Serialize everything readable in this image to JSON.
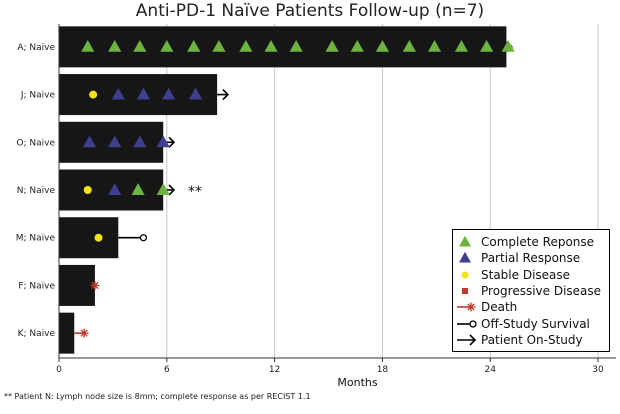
{
  "chart_data": {
    "type": "swimmer",
    "title": "Anti-PD-1 Naïve Patients Follow-up (n=7)",
    "xlabel": "Months",
    "ylabel": "",
    "xlim": [
      0,
      31
    ],
    "xticks": [
      0,
      6,
      12,
      18,
      24,
      30
    ],
    "grid": true,
    "legend_position": "bottom-right",
    "colors": {
      "bar": "#161616",
      "complete_response": "#6cb33f",
      "partial_response": "#3d3f8f",
      "stable_disease": "#f4e21a",
      "progressive_disease": "#c0392b",
      "death": "#c0392b",
      "line": "#000000",
      "grid": "#c8c8c8"
    },
    "legend": [
      {
        "key": "complete_response",
        "label": "Complete Reponse",
        "symbol": "triangle"
      },
      {
        "key": "partial_response",
        "label": "Partial Response",
        "symbol": "triangle"
      },
      {
        "key": "stable_disease",
        "label": "Stable Disease",
        "symbol": "circle"
      },
      {
        "key": "progressive_disease",
        "label": "Progressive Disease",
        "symbol": "square"
      },
      {
        "key": "death",
        "label": "Death",
        "symbol": "asterisk-line"
      },
      {
        "key": "off_study",
        "label": "Off-Study Survival",
        "symbol": "open-circle-line"
      },
      {
        "key": "on_study",
        "label": "Patient On-Study",
        "symbol": "arrow-line"
      }
    ],
    "patients": [
      {
        "label": "A; Naive",
        "bar_end": 24.9,
        "end_marker": "arrow",
        "end_x": 25.2,
        "markers": [
          {
            "x": 1.6,
            "type": "complete_response"
          },
          {
            "x": 3.1,
            "type": "complete_response"
          },
          {
            "x": 4.5,
            "type": "complete_response"
          },
          {
            "x": 6.0,
            "type": "complete_response"
          },
          {
            "x": 7.5,
            "type": "complete_response"
          },
          {
            "x": 8.9,
            "type": "complete_response"
          },
          {
            "x": 10.4,
            "type": "complete_response"
          },
          {
            "x": 11.8,
            "type": "complete_response"
          },
          {
            "x": 13.2,
            "type": "complete_response"
          },
          {
            "x": 15.2,
            "type": "complete_response"
          },
          {
            "x": 16.6,
            "type": "complete_response"
          },
          {
            "x": 18.0,
            "type": "complete_response"
          },
          {
            "x": 19.5,
            "type": "complete_response"
          },
          {
            "x": 20.9,
            "type": "complete_response"
          },
          {
            "x": 22.4,
            "type": "complete_response"
          },
          {
            "x": 23.8,
            "type": "complete_response"
          },
          {
            "x": 25.0,
            "type": "complete_response"
          }
        ]
      },
      {
        "label": "J; Naive",
        "bar_end": 8.8,
        "end_marker": "arrow",
        "end_x": 9.4,
        "markers": [
          {
            "x": 1.9,
            "type": "stable_disease"
          },
          {
            "x": 3.3,
            "type": "partial_response"
          },
          {
            "x": 4.7,
            "type": "partial_response"
          },
          {
            "x": 6.1,
            "type": "partial_response"
          },
          {
            "x": 7.6,
            "type": "partial_response"
          }
        ]
      },
      {
        "label": "O; Naive",
        "bar_end": 5.8,
        "end_marker": "arrow",
        "end_x": 6.4,
        "markers": [
          {
            "x": 1.7,
            "type": "partial_response"
          },
          {
            "x": 3.1,
            "type": "partial_response"
          },
          {
            "x": 4.5,
            "type": "partial_response"
          },
          {
            "x": 5.8,
            "type": "partial_response"
          }
        ]
      },
      {
        "label": "N; Naive",
        "bar_end": 5.8,
        "end_marker": "arrow",
        "end_x": 6.4,
        "note": "**",
        "markers": [
          {
            "x": 1.6,
            "type": "stable_disease"
          },
          {
            "x": 3.1,
            "type": "partial_response"
          },
          {
            "x": 4.4,
            "type": "complete_response"
          },
          {
            "x": 5.8,
            "type": "complete_response"
          }
        ]
      },
      {
        "label": "M; Naive",
        "bar_end": 3.3,
        "end_marker": "off_study",
        "end_x": 4.7,
        "markers": [
          {
            "x": 2.2,
            "type": "stable_disease"
          }
        ]
      },
      {
        "label": "F; Naive",
        "bar_end": 2.0,
        "end_marker": "death",
        "end_x": 2.0,
        "markers": []
      },
      {
        "label": "K; Naive",
        "bar_end": 0.85,
        "end_marker": "death",
        "end_x": 1.4,
        "markers": []
      }
    ],
    "footnote": "** Patient N: Lymph node size is 8mm; complete response as per RECIST 1.1"
  }
}
